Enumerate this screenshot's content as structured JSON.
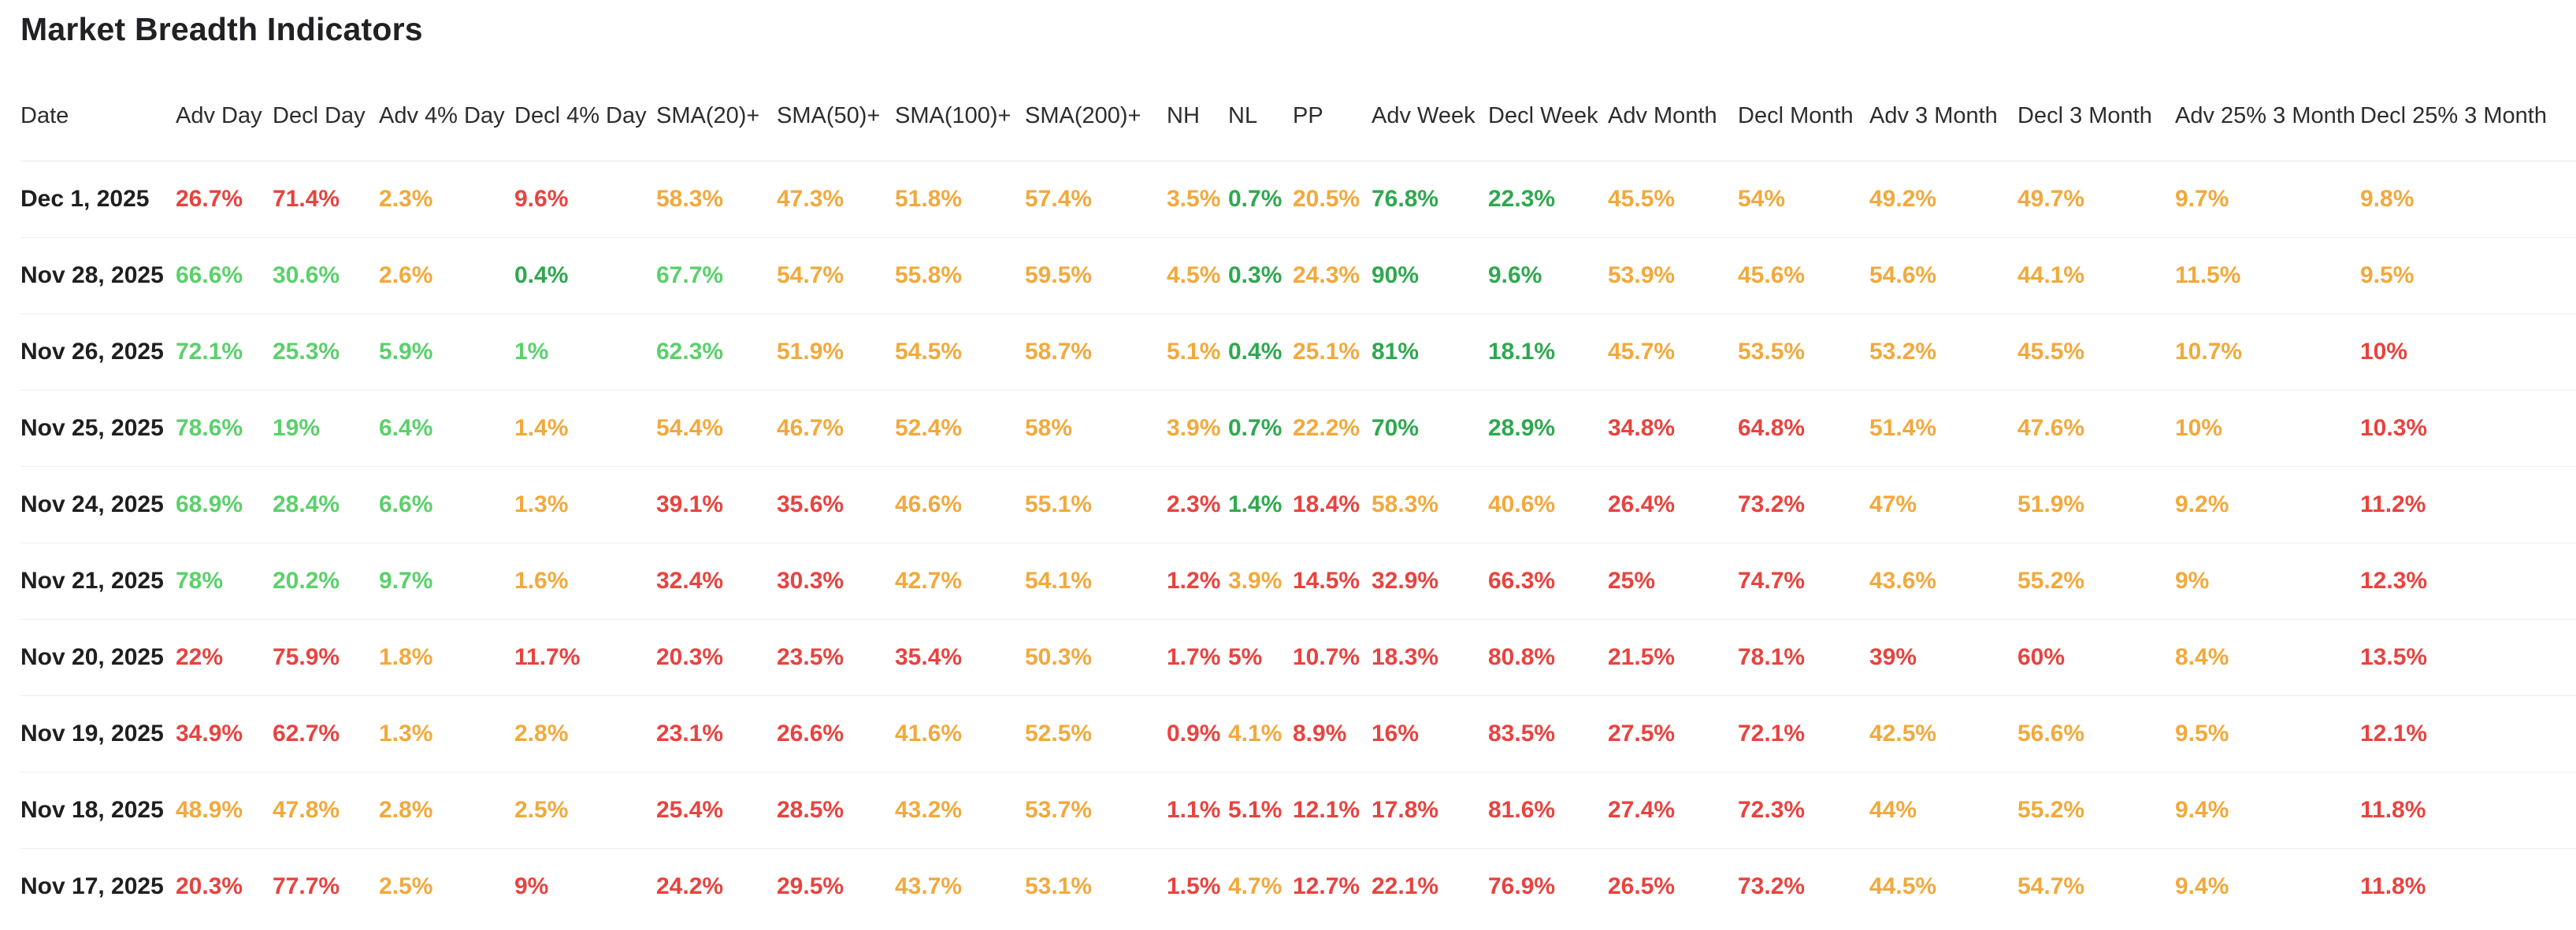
{
  "page": {
    "title": "Market Breadth Indicators"
  },
  "colors": {
    "red": "#e8433f",
    "amber": "#f2a93c",
    "green_light": "#5bd06b",
    "green": "#2fa84f"
  },
  "table": {
    "columns": [
      "Date",
      "Adv Day",
      "Decl Day",
      "Adv 4% Day",
      "Decl 4% Day",
      "SMA(20)+",
      "SMA(50)+",
      "SMA(100)+",
      "SMA(200)+",
      "NH",
      "NL",
      "PP",
      "Adv Week",
      "Decl Week",
      "Adv Month",
      "Decl Month",
      "Adv 3 Month",
      "Decl 3 Month",
      "Adv 25% 3 Month",
      "Decl 25% 3 Month"
    ],
    "rows": [
      {
        "date": "Dec 1, 2025",
        "cells": [
          {
            "v": "26.7%",
            "c": "r"
          },
          {
            "v": "71.4%",
            "c": "r"
          },
          {
            "v": "2.3%",
            "c": "a"
          },
          {
            "v": "9.6%",
            "c": "r"
          },
          {
            "v": "58.3%",
            "c": "a"
          },
          {
            "v": "47.3%",
            "c": "a"
          },
          {
            "v": "51.8%",
            "c": "a"
          },
          {
            "v": "57.4%",
            "c": "a"
          },
          {
            "v": "3.5%",
            "c": "a"
          },
          {
            "v": "0.7%",
            "c": "G"
          },
          {
            "v": "20.5%",
            "c": "a"
          },
          {
            "v": "76.8%",
            "c": "G"
          },
          {
            "v": "22.3%",
            "c": "G"
          },
          {
            "v": "45.5%",
            "c": "a"
          },
          {
            "v": "54%",
            "c": "a"
          },
          {
            "v": "49.2%",
            "c": "a"
          },
          {
            "v": "49.7%",
            "c": "a"
          },
          {
            "v": "9.7%",
            "c": "a"
          },
          {
            "v": "9.8%",
            "c": "a"
          }
        ]
      },
      {
        "date": "Nov 28, 2025",
        "cells": [
          {
            "v": "66.6%",
            "c": "g"
          },
          {
            "v": "30.6%",
            "c": "g"
          },
          {
            "v": "2.6%",
            "c": "a"
          },
          {
            "v": "0.4%",
            "c": "G"
          },
          {
            "v": "67.7%",
            "c": "g"
          },
          {
            "v": "54.7%",
            "c": "a"
          },
          {
            "v": "55.8%",
            "c": "a"
          },
          {
            "v": "59.5%",
            "c": "a"
          },
          {
            "v": "4.5%",
            "c": "a"
          },
          {
            "v": "0.3%",
            "c": "G"
          },
          {
            "v": "24.3%",
            "c": "a"
          },
          {
            "v": "90%",
            "c": "G"
          },
          {
            "v": "9.6%",
            "c": "G"
          },
          {
            "v": "53.9%",
            "c": "a"
          },
          {
            "v": "45.6%",
            "c": "a"
          },
          {
            "v": "54.6%",
            "c": "a"
          },
          {
            "v": "44.1%",
            "c": "a"
          },
          {
            "v": "11.5%",
            "c": "a"
          },
          {
            "v": "9.5%",
            "c": "a"
          }
        ]
      },
      {
        "date": "Nov 26, 2025",
        "cells": [
          {
            "v": "72.1%",
            "c": "g"
          },
          {
            "v": "25.3%",
            "c": "g"
          },
          {
            "v": "5.9%",
            "c": "g"
          },
          {
            "v": "1%",
            "c": "g"
          },
          {
            "v": "62.3%",
            "c": "g"
          },
          {
            "v": "51.9%",
            "c": "a"
          },
          {
            "v": "54.5%",
            "c": "a"
          },
          {
            "v": "58.7%",
            "c": "a"
          },
          {
            "v": "5.1%",
            "c": "a"
          },
          {
            "v": "0.4%",
            "c": "G"
          },
          {
            "v": "25.1%",
            "c": "a"
          },
          {
            "v": "81%",
            "c": "G"
          },
          {
            "v": "18.1%",
            "c": "G"
          },
          {
            "v": "45.7%",
            "c": "a"
          },
          {
            "v": "53.5%",
            "c": "a"
          },
          {
            "v": "53.2%",
            "c": "a"
          },
          {
            "v": "45.5%",
            "c": "a"
          },
          {
            "v": "10.7%",
            "c": "a"
          },
          {
            "v": "10%",
            "c": "r"
          }
        ]
      },
      {
        "date": "Nov 25, 2025",
        "cells": [
          {
            "v": "78.6%",
            "c": "g"
          },
          {
            "v": "19%",
            "c": "g"
          },
          {
            "v": "6.4%",
            "c": "g"
          },
          {
            "v": "1.4%",
            "c": "a"
          },
          {
            "v": "54.4%",
            "c": "a"
          },
          {
            "v": "46.7%",
            "c": "a"
          },
          {
            "v": "52.4%",
            "c": "a"
          },
          {
            "v": "58%",
            "c": "a"
          },
          {
            "v": "3.9%",
            "c": "a"
          },
          {
            "v": "0.7%",
            "c": "G"
          },
          {
            "v": "22.2%",
            "c": "a"
          },
          {
            "v": "70%",
            "c": "G"
          },
          {
            "v": "28.9%",
            "c": "G"
          },
          {
            "v": "34.8%",
            "c": "r"
          },
          {
            "v": "64.8%",
            "c": "r"
          },
          {
            "v": "51.4%",
            "c": "a"
          },
          {
            "v": "47.6%",
            "c": "a"
          },
          {
            "v": "10%",
            "c": "a"
          },
          {
            "v": "10.3%",
            "c": "r"
          }
        ]
      },
      {
        "date": "Nov 24, 2025",
        "cells": [
          {
            "v": "68.9%",
            "c": "g"
          },
          {
            "v": "28.4%",
            "c": "g"
          },
          {
            "v": "6.6%",
            "c": "g"
          },
          {
            "v": "1.3%",
            "c": "a"
          },
          {
            "v": "39.1%",
            "c": "r"
          },
          {
            "v": "35.6%",
            "c": "r"
          },
          {
            "v": "46.6%",
            "c": "a"
          },
          {
            "v": "55.1%",
            "c": "a"
          },
          {
            "v": "2.3%",
            "c": "r"
          },
          {
            "v": "1.4%",
            "c": "G"
          },
          {
            "v": "18.4%",
            "c": "r"
          },
          {
            "v": "58.3%",
            "c": "a"
          },
          {
            "v": "40.6%",
            "c": "a"
          },
          {
            "v": "26.4%",
            "c": "r"
          },
          {
            "v": "73.2%",
            "c": "r"
          },
          {
            "v": "47%",
            "c": "a"
          },
          {
            "v": "51.9%",
            "c": "a"
          },
          {
            "v": "9.2%",
            "c": "a"
          },
          {
            "v": "11.2%",
            "c": "r"
          }
        ]
      },
      {
        "date": "Nov 21, 2025",
        "cells": [
          {
            "v": "78%",
            "c": "g"
          },
          {
            "v": "20.2%",
            "c": "g"
          },
          {
            "v": "9.7%",
            "c": "g"
          },
          {
            "v": "1.6%",
            "c": "a"
          },
          {
            "v": "32.4%",
            "c": "r"
          },
          {
            "v": "30.3%",
            "c": "r"
          },
          {
            "v": "42.7%",
            "c": "a"
          },
          {
            "v": "54.1%",
            "c": "a"
          },
          {
            "v": "1.2%",
            "c": "r"
          },
          {
            "v": "3.9%",
            "c": "a"
          },
          {
            "v": "14.5%",
            "c": "r"
          },
          {
            "v": "32.9%",
            "c": "r"
          },
          {
            "v": "66.3%",
            "c": "r"
          },
          {
            "v": "25%",
            "c": "r"
          },
          {
            "v": "74.7%",
            "c": "r"
          },
          {
            "v": "43.6%",
            "c": "a"
          },
          {
            "v": "55.2%",
            "c": "a"
          },
          {
            "v": "9%",
            "c": "a"
          },
          {
            "v": "12.3%",
            "c": "r"
          }
        ]
      },
      {
        "date": "Nov 20, 2025",
        "cells": [
          {
            "v": "22%",
            "c": "r"
          },
          {
            "v": "75.9%",
            "c": "r"
          },
          {
            "v": "1.8%",
            "c": "a"
          },
          {
            "v": "11.7%",
            "c": "r"
          },
          {
            "v": "20.3%",
            "c": "r"
          },
          {
            "v": "23.5%",
            "c": "r"
          },
          {
            "v": "35.4%",
            "c": "r"
          },
          {
            "v": "50.3%",
            "c": "a"
          },
          {
            "v": "1.7%",
            "c": "r"
          },
          {
            "v": "5%",
            "c": "r"
          },
          {
            "v": "10.7%",
            "c": "r"
          },
          {
            "v": "18.3%",
            "c": "r"
          },
          {
            "v": "80.8%",
            "c": "r"
          },
          {
            "v": "21.5%",
            "c": "r"
          },
          {
            "v": "78.1%",
            "c": "r"
          },
          {
            "v": "39%",
            "c": "r"
          },
          {
            "v": "60%",
            "c": "r"
          },
          {
            "v": "8.4%",
            "c": "a"
          },
          {
            "v": "13.5%",
            "c": "r"
          }
        ]
      },
      {
        "date": "Nov 19, 2025",
        "cells": [
          {
            "v": "34.9%",
            "c": "r"
          },
          {
            "v": "62.7%",
            "c": "r"
          },
          {
            "v": "1.3%",
            "c": "a"
          },
          {
            "v": "2.8%",
            "c": "a"
          },
          {
            "v": "23.1%",
            "c": "r"
          },
          {
            "v": "26.6%",
            "c": "r"
          },
          {
            "v": "41.6%",
            "c": "a"
          },
          {
            "v": "52.5%",
            "c": "a"
          },
          {
            "v": "0.9%",
            "c": "r"
          },
          {
            "v": "4.1%",
            "c": "a"
          },
          {
            "v": "8.9%",
            "c": "r"
          },
          {
            "v": "16%",
            "c": "r"
          },
          {
            "v": "83.5%",
            "c": "r"
          },
          {
            "v": "27.5%",
            "c": "r"
          },
          {
            "v": "72.1%",
            "c": "r"
          },
          {
            "v": "42.5%",
            "c": "a"
          },
          {
            "v": "56.6%",
            "c": "a"
          },
          {
            "v": "9.5%",
            "c": "a"
          },
          {
            "v": "12.1%",
            "c": "r"
          }
        ]
      },
      {
        "date": "Nov 18, 2025",
        "cells": [
          {
            "v": "48.9%",
            "c": "a"
          },
          {
            "v": "47.8%",
            "c": "a"
          },
          {
            "v": "2.8%",
            "c": "a"
          },
          {
            "v": "2.5%",
            "c": "a"
          },
          {
            "v": "25.4%",
            "c": "r"
          },
          {
            "v": "28.5%",
            "c": "r"
          },
          {
            "v": "43.2%",
            "c": "a"
          },
          {
            "v": "53.7%",
            "c": "a"
          },
          {
            "v": "1.1%",
            "c": "r"
          },
          {
            "v": "5.1%",
            "c": "r"
          },
          {
            "v": "12.1%",
            "c": "r"
          },
          {
            "v": "17.8%",
            "c": "r"
          },
          {
            "v": "81.6%",
            "c": "r"
          },
          {
            "v": "27.4%",
            "c": "r"
          },
          {
            "v": "72.3%",
            "c": "r"
          },
          {
            "v": "44%",
            "c": "a"
          },
          {
            "v": "55.2%",
            "c": "a"
          },
          {
            "v": "9.4%",
            "c": "a"
          },
          {
            "v": "11.8%",
            "c": "r"
          }
        ]
      },
      {
        "date": "Nov 17, 2025",
        "cells": [
          {
            "v": "20.3%",
            "c": "r"
          },
          {
            "v": "77.7%",
            "c": "r"
          },
          {
            "v": "2.5%",
            "c": "a"
          },
          {
            "v": "9%",
            "c": "r"
          },
          {
            "v": "24.2%",
            "c": "r"
          },
          {
            "v": "29.5%",
            "c": "r"
          },
          {
            "v": "43.7%",
            "c": "a"
          },
          {
            "v": "53.1%",
            "c": "a"
          },
          {
            "v": "1.5%",
            "c": "r"
          },
          {
            "v": "4.7%",
            "c": "a"
          },
          {
            "v": "12.7%",
            "c": "r"
          },
          {
            "v": "22.1%",
            "c": "r"
          },
          {
            "v": "76.9%",
            "c": "r"
          },
          {
            "v": "26.5%",
            "c": "r"
          },
          {
            "v": "73.2%",
            "c": "r"
          },
          {
            "v": "44.5%",
            "c": "a"
          },
          {
            "v": "54.7%",
            "c": "a"
          },
          {
            "v": "9.4%",
            "c": "a"
          },
          {
            "v": "11.8%",
            "c": "r"
          }
        ]
      }
    ]
  }
}
